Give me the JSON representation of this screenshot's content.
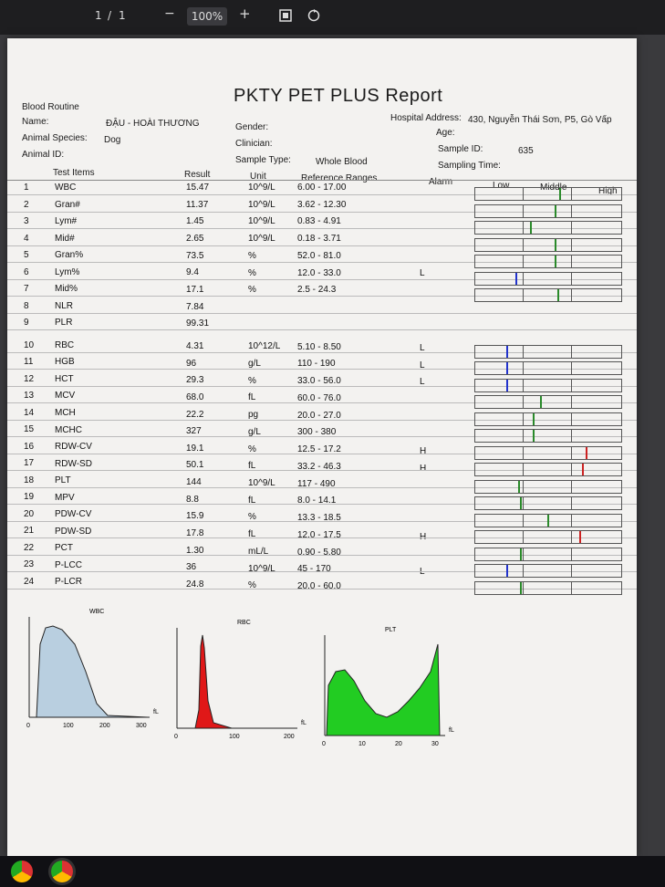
{
  "viewer": {
    "page_current": "1",
    "page_sep": "/",
    "page_total": "1",
    "zoom_out": "−",
    "zoom": "100%",
    "zoom_in": "+"
  },
  "report": {
    "title": "PKTY PET PLUS Report",
    "section": "Blood Routine",
    "hospital_label": "Hospital Address:",
    "hospital_value": "430, Nguyễn Thái Sơn, P5, Gò Vấp",
    "name_label": "Name:",
    "name_value": "ĐẬU - HOÀI THƯƠNG",
    "gender_label": "Gender:",
    "age_label": "Age:",
    "species_label": "Animal Species:",
    "species_value": "Dog",
    "clinician_label": "Clinician:",
    "sample_id_label": "Sample ID:",
    "sample_id_value": "635",
    "animal_id_label": "Animal ID:",
    "sample_type_label": "Sample Type:",
    "sample_type_value": "Whole Blood",
    "sampling_time_label": "Sampling Time:",
    "col_test": "Test Items",
    "col_result": "Result",
    "col_unit": "Unit",
    "col_ref": "Reference Ranges",
    "col_alarm": "Alarm",
    "col_low": "Low",
    "col_middle": "Middle",
    "col_high": "High"
  },
  "rows": [
    {
      "no": "1",
      "item": "WBC",
      "result": "15.47",
      "unit": "10^9/L",
      "ref": "6.00 - 17.00",
      "alarm": "",
      "level": 0.58,
      "color": "#2a8a2a"
    },
    {
      "no": "2",
      "item": "Gran#",
      "result": "11.37",
      "unit": "10^9/L",
      "ref": "3.62 - 12.30",
      "alarm": "",
      "level": 0.55,
      "color": "#2a8a2a"
    },
    {
      "no": "3",
      "item": "Lym#",
      "result": "1.45",
      "unit": "10^9/L",
      "ref": "0.83 - 4.91",
      "alarm": "",
      "level": 0.38,
      "color": "#2a8a2a"
    },
    {
      "no": "4",
      "item": "Mid#",
      "result": "2.65",
      "unit": "10^9/L",
      "ref": "0.18 - 3.71",
      "alarm": "",
      "level": 0.55,
      "color": "#2a8a2a"
    },
    {
      "no": "5",
      "item": "Gran%",
      "result": "73.5",
      "unit": "%",
      "ref": "52.0 - 81.0",
      "alarm": "",
      "level": 0.55,
      "color": "#2a8a2a"
    },
    {
      "no": "6",
      "item": "Lym%",
      "result": "9.4",
      "unit": "%",
      "ref": "12.0 - 33.0",
      "alarm": "L",
      "level": 0.28,
      "color": "#2233cc"
    },
    {
      "no": "7",
      "item": "Mid%",
      "result": "17.1",
      "unit": "%",
      "ref": "2.5 - 24.3",
      "alarm": "",
      "level": 0.57,
      "color": "#2a8a2a"
    },
    {
      "no": "8",
      "item": "NLR",
      "result": "7.84",
      "unit": "",
      "ref": "",
      "alarm": "",
      "level": null,
      "color": ""
    },
    {
      "no": "9",
      "item": "PLR",
      "result": "99.31",
      "unit": "",
      "ref": "",
      "alarm": "",
      "level": null,
      "color": ""
    },
    {
      "no": "10",
      "item": "RBC",
      "result": "4.31",
      "unit": "10^12/L",
      "ref": "5.10 - 8.50",
      "alarm": "L",
      "level": 0.22,
      "color": "#2233cc"
    },
    {
      "no": "11",
      "item": "HGB",
      "result": "96",
      "unit": "g/L",
      "ref": "110 - 190",
      "alarm": "L",
      "level": 0.22,
      "color": "#2233cc"
    },
    {
      "no": "12",
      "item": "HCT",
      "result": "29.3",
      "unit": "%",
      "ref": "33.0 - 56.0",
      "alarm": "L",
      "level": 0.22,
      "color": "#2233cc"
    },
    {
      "no": "13",
      "item": "MCV",
      "result": "68.0",
      "unit": "fL",
      "ref": "60.0 - 76.0",
      "alarm": "",
      "level": 0.45,
      "color": "#2a8a2a"
    },
    {
      "no": "14",
      "item": "MCH",
      "result": "22.2",
      "unit": "pg",
      "ref": "20.0 - 27.0",
      "alarm": "",
      "level": 0.4,
      "color": "#2a8a2a"
    },
    {
      "no": "15",
      "item": "MCHC",
      "result": "327",
      "unit": "g/L",
      "ref": "300 - 380",
      "alarm": "",
      "level": 0.4,
      "color": "#2a8a2a"
    },
    {
      "no": "16",
      "item": "RDW-CV",
      "result": "19.1",
      "unit": "%",
      "ref": "12.5 - 17.2",
      "alarm": "H",
      "level": 0.76,
      "color": "#cc2222"
    },
    {
      "no": "17",
      "item": "RDW-SD",
      "result": "50.1",
      "unit": "fL",
      "ref": "33.2 - 46.3",
      "alarm": "H",
      "level": 0.74,
      "color": "#cc2222"
    },
    {
      "no": "18",
      "item": "PLT",
      "result": "144",
      "unit": "10^9/L",
      "ref": "117 - 490",
      "alarm": "",
      "level": 0.3,
      "color": "#2a8a2a"
    },
    {
      "no": "19",
      "item": "MPV",
      "result": "8.8",
      "unit": "fL",
      "ref": "8.0 - 14.1",
      "alarm": "",
      "level": 0.31,
      "color": "#2a8a2a"
    },
    {
      "no": "20",
      "item": "PDW-CV",
      "result": "15.9",
      "unit": "%",
      "ref": "13.3 - 18.5",
      "alarm": "",
      "level": 0.5,
      "color": "#2a8a2a"
    },
    {
      "no": "21",
      "item": "PDW-SD",
      "result": "17.8",
      "unit": "fL",
      "ref": "12.0 - 17.5",
      "alarm": "H",
      "level": 0.72,
      "color": "#cc2222"
    },
    {
      "no": "22",
      "item": "PCT",
      "result": "1.30",
      "unit": "mL/L",
      "ref": "0.90 - 5.80",
      "alarm": "",
      "level": 0.31,
      "color": "#2a8a2a"
    },
    {
      "no": "23",
      "item": "P-LCC",
      "result": "36",
      "unit": "10^9/L",
      "ref": "45 - 170",
      "alarm": "L",
      "level": 0.22,
      "color": "#2233cc"
    },
    {
      "no": "24",
      "item": "P-LCR",
      "result": "24.8",
      "unit": "%",
      "ref": "20.0 - 60.0",
      "alarm": "",
      "level": 0.31,
      "color": "#2a8a2a"
    }
  ],
  "histograms": [
    {
      "label": "WBC",
      "ticks": [
        "0",
        "100",
        "200",
        "300"
      ],
      "unit": "fL",
      "fill": "#b9cfe0"
    },
    {
      "label": "RBC",
      "ticks": [
        "0",
        "100",
        "200"
      ],
      "unit": "fL",
      "fill": "#e01818"
    },
    {
      "label": "PLT",
      "ticks": [
        "0",
        "10",
        "20",
        "30"
      ],
      "unit": "fL",
      "fill": "#22cc22"
    }
  ],
  "icons": {
    "fit": "fit-page-icon",
    "rotate": "rotate-icon",
    "app1": "chrome-icon",
    "app2": "chrome-icon"
  }
}
